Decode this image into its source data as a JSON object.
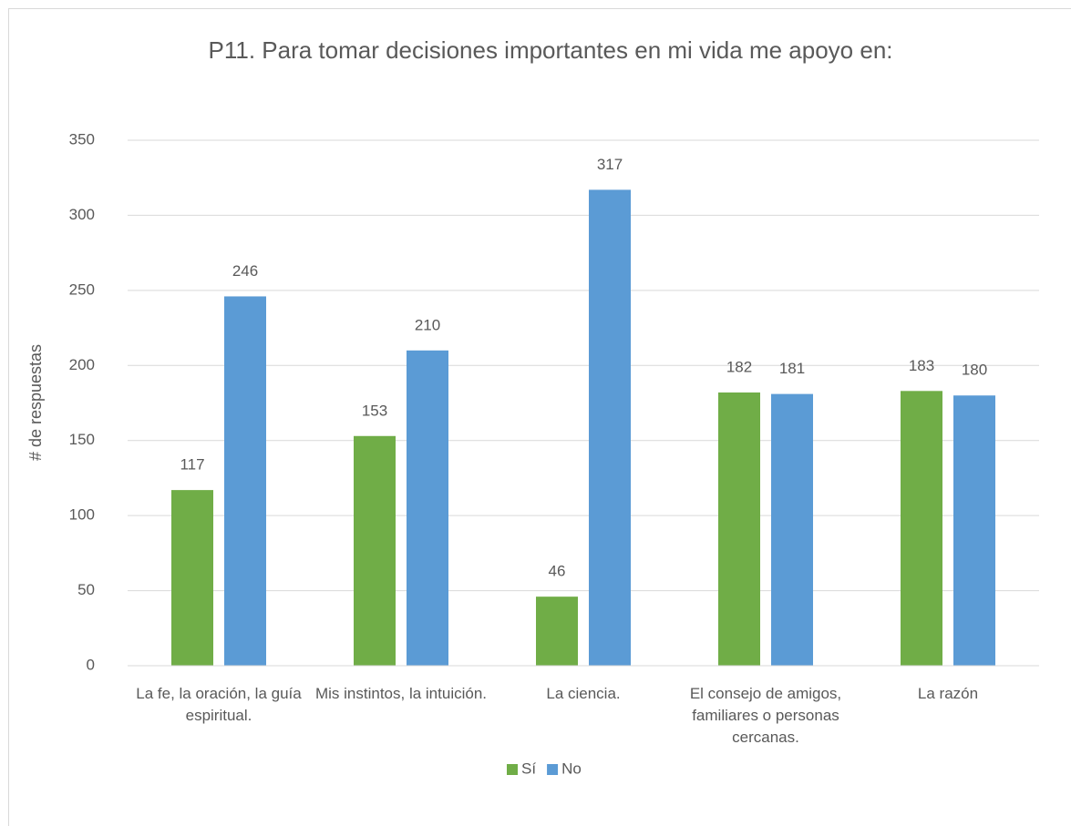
{
  "chart_data": {
    "type": "bar",
    "title": "P11. Para tomar decisiones importantes en mi vida me apoyo en:",
    "y_label": "# de respuestas",
    "categories": [
      "La fe, la oración, la guía espiritual.",
      "Mis instintos, la intuición.",
      "La ciencia.",
      "El consejo de amigos, familiares o personas cercanas.",
      "La razón"
    ],
    "series": [
      {
        "name": "Sí",
        "color": "#70ad47",
        "values": [
          117,
          153,
          46,
          182,
          183
        ]
      },
      {
        "name": "No",
        "color": "#5b9bd5",
        "values": [
          246,
          210,
          317,
          181,
          180
        ]
      }
    ],
    "ylim": [
      0,
      350
    ],
    "yticks": [
      0,
      50,
      100,
      150,
      200,
      250,
      300,
      350
    ],
    "grid": true,
    "legend": "bottom"
  }
}
